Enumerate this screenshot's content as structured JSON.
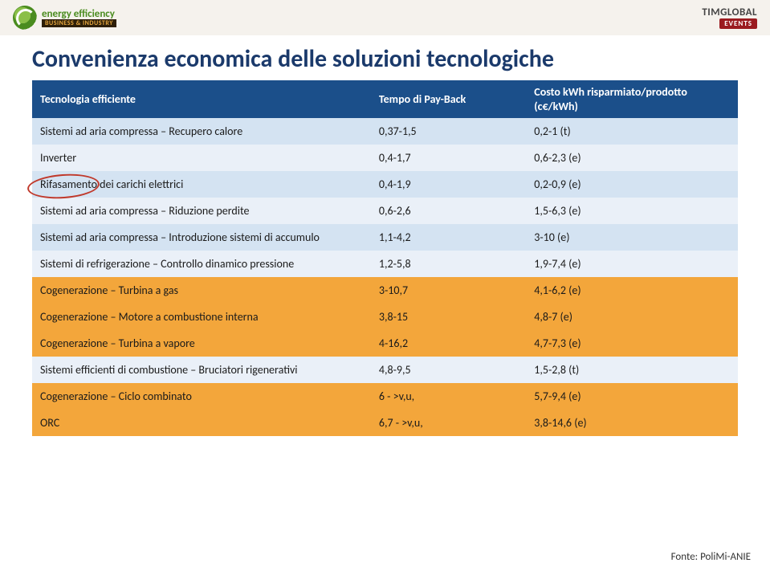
{
  "header": {
    "logo_left_main": "energy efficiency",
    "logo_left_sub": "BUSINESS & INDUSTRY",
    "logo_right_main": "TIMGLOBAL",
    "logo_right_sub": "EVENTS"
  },
  "title": "Convenienza economica delle soluzioni tecnologiche",
  "table": {
    "headers": [
      "Tecnologia efficiente",
      "Tempo di Pay-Back",
      "Costo kWh risparmiato/prodotto (c€/kWh)"
    ],
    "row_alt_colors": [
      "#d4e3f2",
      "#eaf0f8"
    ],
    "highlight_color": "#f3a63b",
    "rows": [
      {
        "cells": [
          "Sistemi ad aria compressa – Recupero calore",
          "0,37-1,5",
          "0,2-1 (t)"
        ],
        "highlight": false
      },
      {
        "cells": [
          "Inverter",
          "0,4-1,7",
          "0,6-2,3 (e)"
        ],
        "highlight": false
      },
      {
        "cells": [
          "Rifasamento dei carichi elettrici",
          "0,4-1,9",
          "0,2-0,9 (e)"
        ],
        "highlight": false
      },
      {
        "cells": [
          "Sistemi ad aria compressa – Riduzione perdite",
          "0,6-2,6",
          "1,5-6,3 (e)"
        ],
        "highlight": false
      },
      {
        "cells": [
          "Sistemi ad aria compressa – Introduzione sistemi di accumulo",
          "1,1-4,2",
          "3-10 (e)"
        ],
        "highlight": false
      },
      {
        "cells": [
          "Sistemi di refrigerazione – Controllo dinamico pressione",
          "1,2-5,8",
          "1,9-7,4 (e)"
        ],
        "highlight": false
      },
      {
        "cells": [
          "Cogenerazione – Turbina a gas",
          "3-10,7",
          "4,1-6,2 (e)"
        ],
        "highlight": true
      },
      {
        "cells": [
          "Cogenerazione – Motore a combustione interna",
          "3,8-15",
          "4,8-7 (e)"
        ],
        "highlight": true
      },
      {
        "cells": [
          "Cogenerazione – Turbina a vapore",
          "4-16,2",
          "4,7-7,3 (e)"
        ],
        "highlight": true
      },
      {
        "cells": [
          "Sistemi efficienti di combustione – Bruciatori rigenerativi",
          "4,8-9,5",
          "1,5-2,8 (t)"
        ],
        "highlight": false
      },
      {
        "cells": [
          "Cogenerazione – Ciclo combinato",
          "6 - >v,u,",
          "5,7-9,4 (e)"
        ],
        "highlight": true
      },
      {
        "cells": [
          "ORC",
          "6,7 - >v,u,",
          "3,8-14,6 (e)"
        ],
        "highlight": true
      }
    ]
  },
  "source_label": "Fonte: PoliMi-ANIE",
  "colors": {
    "title": "#1b3a6b",
    "header_bg": "#1b4f8a",
    "header_text": "#ffffff",
    "circle": "#c0392b"
  }
}
